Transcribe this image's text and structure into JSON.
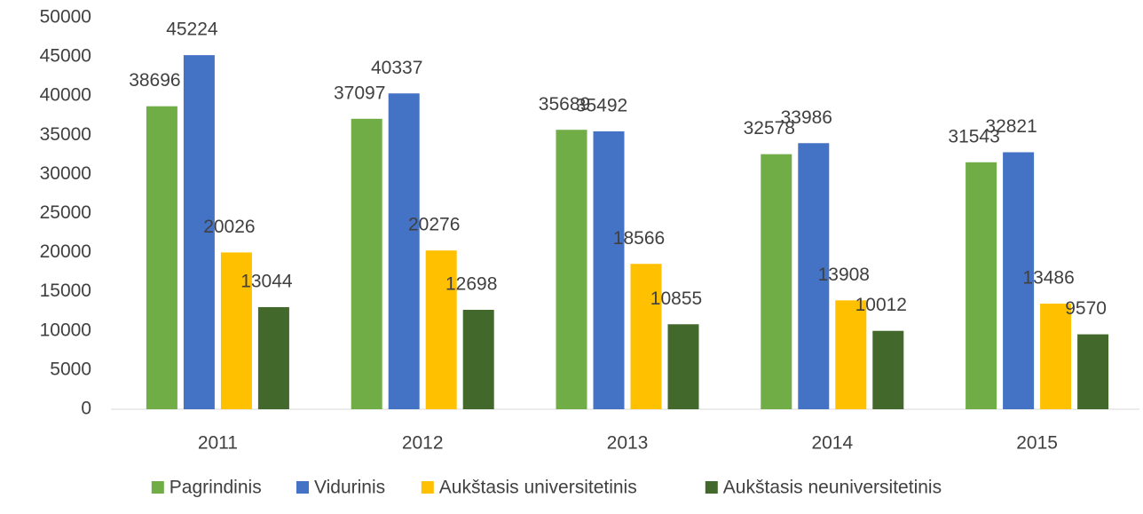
{
  "chart_data": {
    "type": "bar",
    "categories": [
      "2011",
      "2012",
      "2013",
      "2014",
      "2015"
    ],
    "series": [
      {
        "name": "Pagrindinis",
        "color": "#70ad47",
        "values": [
          38696,
          37097,
          35689,
          32578,
          31543
        ]
      },
      {
        "name": "Vidurinis",
        "color": "#4472c4",
        "values": [
          45224,
          40337,
          35492,
          33986,
          32821
        ]
      },
      {
        "name": "Aukštasis universitetinis",
        "color": "#ffc000",
        "values": [
          20026,
          20276,
          18566,
          13908,
          13486
        ]
      },
      {
        "name": "Aukštasis neuniversitetinis",
        "color": "#43682b",
        "values": [
          13044,
          12698,
          10855,
          10012,
          9570
        ]
      }
    ],
    "ylim": [
      0,
      50000
    ],
    "yticks": [
      0,
      5000,
      10000,
      15000,
      20000,
      25000,
      30000,
      35000,
      40000,
      45000,
      50000
    ],
    "grid": false,
    "legend": "bottom"
  }
}
